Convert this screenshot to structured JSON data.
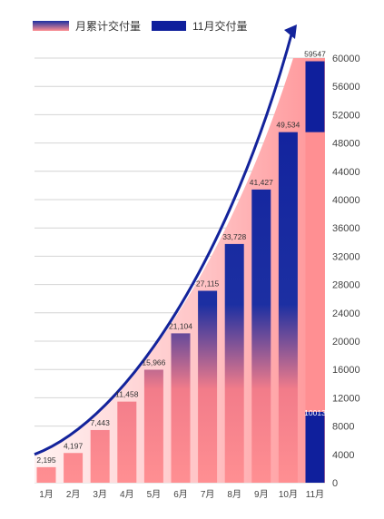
{
  "legend": {
    "cumulative_label": "月累计交付量",
    "monthly_label": "11月交付量"
  },
  "colors": {
    "navy": "#0f1f9c",
    "pink": "#ff8f92",
    "arrow": "#13239b",
    "grid": "#d4d4d4"
  },
  "chart_data": {
    "type": "bar",
    "categories": [
      "1月",
      "2月",
      "3月",
      "4月",
      "5月",
      "6月",
      "7月",
      "8月",
      "9月",
      "10月",
      "11月"
    ],
    "series": [
      {
        "name": "月累计交付量",
        "values": [
          2195,
          4197,
          7443,
          11458,
          15966,
          21104,
          27115,
          33728,
          41427,
          49534,
          59547
        ],
        "labels": [
          "2,195",
          "4,197",
          "7,443",
          "11,458",
          "15,966",
          "21,104",
          "27,115",
          "33,728",
          "41,427",
          "49,534",
          "59547"
        ]
      },
      {
        "name": "11月交付量",
        "values": [
          null,
          null,
          null,
          null,
          null,
          null,
          null,
          null,
          null,
          null,
          10013
        ],
        "labels": [
          "",
          "",
          "",
          "",
          "",
          "",
          "",
          "",
          "",
          "",
          "10013"
        ]
      }
    ],
    "yaxis": {
      "position": "right",
      "ylim": [
        0,
        60000
      ],
      "ticks": [
        0,
        4000,
        8000,
        12000,
        16000,
        20000,
        24000,
        28000,
        32000,
        36000,
        40000,
        44000,
        48000,
        52000,
        56000,
        60000
      ]
    },
    "grid": true,
    "legend_position": "top-left",
    "annotation": "upward trend arrow over bars"
  }
}
